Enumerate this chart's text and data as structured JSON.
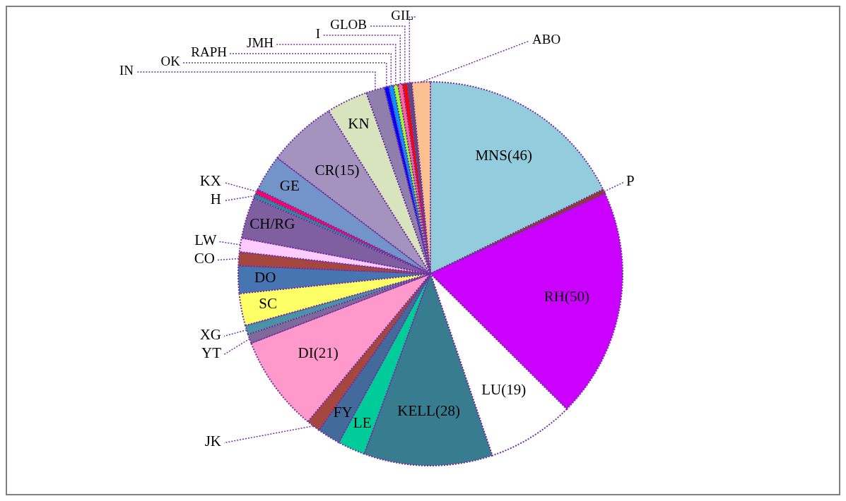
{
  "chart_data": {
    "type": "pie",
    "categories": [
      "MNS(46)",
      "P",
      "RH(50)",
      "LU(19)",
      "KELL(28)",
      "LE",
      "FY",
      "JK",
      "DI(21)",
      "YT",
      "XG",
      "SC",
      "DO",
      "CO",
      "LW",
      "CH/RG",
      "H",
      "KX",
      "GE",
      "CR(15)",
      "KN",
      "IN",
      "OK",
      "RAPH",
      "JMH",
      "I",
      "GLOB",
      "GIL",
      "ABO"
    ],
    "values": [
      46,
      1,
      50,
      19,
      28,
      6,
      5,
      3,
      21,
      2,
      2,
      7,
      6,
      3,
      3,
      9,
      1,
      1,
      8,
      15,
      9,
      4,
      1,
      1,
      1,
      1,
      1,
      1,
      4
    ],
    "colors": [
      "#93cddd",
      "#953735",
      "#cc00ff",
      "#ffffff",
      "#387d8f",
      "#00cc99",
      "#426a9a",
      "#a5473f",
      "#ff99cc",
      "#7f6a9a",
      "#4a93a6",
      "#ffff66",
      "#4775b1",
      "#a5473f",
      "#ffccff",
      "#7f5f9f",
      "#31859c",
      "#ff0066",
      "#7394c8",
      "#a492bf",
      "#d7e4bd",
      "#8e7fad",
      "#0000ff",
      "#0099ff",
      "#99ff33",
      "#ff6699",
      "#ff0000",
      "#604a7b",
      "#fac090"
    ]
  }
}
